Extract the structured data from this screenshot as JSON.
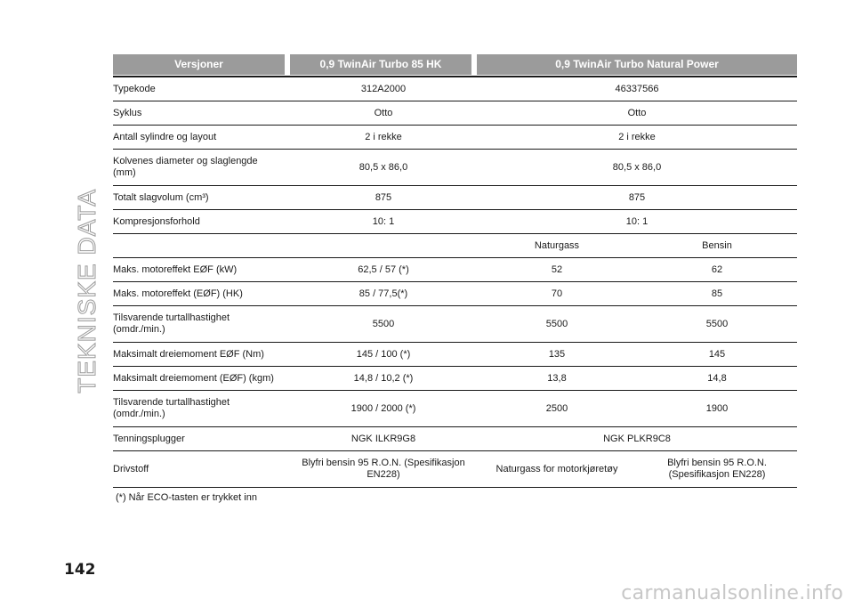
{
  "side_title": "TEKNISKE DATA",
  "page_number": "142",
  "watermark": "carmanualsonline.info",
  "table": {
    "headers": [
      "Versjoner",
      "0,9 TwinAir Turbo 85 HK",
      "0,9 TwinAir Turbo Natural Power"
    ],
    "rows": [
      {
        "label": "Typekode",
        "v1": "312A2000",
        "v2": "46337566"
      },
      {
        "label": "Syklus",
        "v1": "Otto",
        "v2": "Otto"
      },
      {
        "label": "Antall sylindre og layout",
        "v1": "2 i rekke",
        "v2": "2 i rekke"
      },
      {
        "label": "Kolvenes diameter og slaglengde (mm)",
        "v1": "80,5 x 86,0",
        "v2": "80,5 x 86,0"
      },
      {
        "label": "Totalt slagvolum (cm³)",
        "v1": "875",
        "v2": "875"
      },
      {
        "label": "Kompresjonsforhold",
        "v1": "10: 1",
        "v2": "10: 1"
      },
      {
        "label": "",
        "v1": "",
        "v2a": "Naturgass",
        "v2b": "Bensin"
      },
      {
        "label": "Maks. motoreffekt EØF (kW)",
        "v1": "62,5 / 57 (*)",
        "v2a": "52",
        "v2b": "62"
      },
      {
        "label": "Maks. motoreffekt (EØF) (HK)",
        "v1": "85 / 77,5(*)",
        "v2a": "70",
        "v2b": "85"
      },
      {
        "label": "Tilsvarende turtallhastighet (omdr./min.)",
        "v1": "5500",
        "v2a": "5500",
        "v2b": "5500"
      },
      {
        "label": "Maksimalt dreiemoment EØF (Nm)",
        "v1": "145 / 100 (*)",
        "v2a": "135",
        "v2b": "145"
      },
      {
        "label": "Maksimalt dreiemoment (EØF) (kgm)",
        "v1": "14,8 / 10,2 (*)",
        "v2a": "13,8",
        "v2b": "14,8"
      },
      {
        "label": "Tilsvarende turtallhastighet (omdr./min.)",
        "v1": "1900 / 2000 (*)",
        "v2a": "2500",
        "v2b": "1900"
      },
      {
        "label": "Tenningsplugger",
        "v1": "NGK ILKR9G8",
        "v2": "NGK PLKR9C8"
      },
      {
        "label": "Drivstoff",
        "v1": "Blyfri bensin 95 R.O.N. (Spesifikasjon EN228)",
        "v2a": "Naturgass for motorkjøretøy",
        "v2b": "Blyfri bensin 95 R.O.N. (Spesifikasjon EN228)"
      }
    ]
  },
  "footnote": "(*) Når ECO-tasten er trykket inn"
}
